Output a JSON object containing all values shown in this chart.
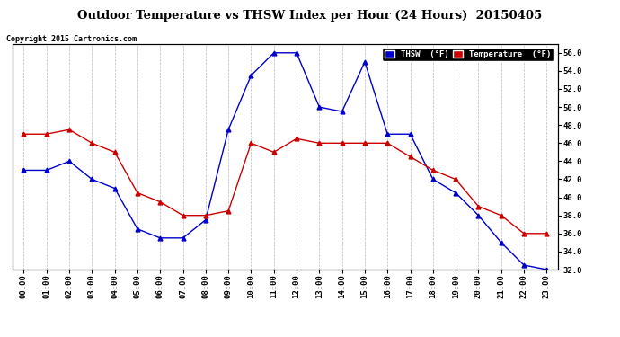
{
  "title": "Outdoor Temperature vs THSW Index per Hour (24 Hours)  20150405",
  "copyright": "Copyright 2015 Cartronics.com",
  "background_color": "#ffffff",
  "plot_background": "#ffffff",
  "grid_color": "#bbbbbb",
  "hours": [
    "00:00",
    "01:00",
    "02:00",
    "03:00",
    "04:00",
    "05:00",
    "06:00",
    "07:00",
    "08:00",
    "09:00",
    "10:00",
    "11:00",
    "12:00",
    "13:00",
    "14:00",
    "15:00",
    "16:00",
    "17:00",
    "18:00",
    "19:00",
    "20:00",
    "21:00",
    "22:00",
    "23:00"
  ],
  "thsw": [
    43.0,
    43.0,
    44.0,
    42.0,
    41.0,
    36.5,
    35.5,
    35.5,
    37.5,
    47.5,
    53.5,
    56.0,
    56.0,
    50.0,
    49.5,
    55.0,
    47.0,
    47.0,
    42.0,
    40.5,
    38.0,
    35.0,
    32.5,
    32.0
  ],
  "temperature": [
    47.0,
    47.0,
    47.5,
    46.0,
    45.0,
    40.5,
    39.5,
    38.0,
    38.0,
    38.5,
    46.0,
    45.0,
    46.5,
    46.0,
    46.0,
    46.0,
    46.0,
    44.5,
    43.0,
    42.0,
    39.0,
    38.0,
    36.0,
    36.0
  ],
  "thsw_color": "#0000cc",
  "temp_color": "#cc0000",
  "ylim_min": 32.0,
  "ylim_max": 57.0,
  "ytick_min": 32.0,
  "ytick_max": 56.0,
  "ytick_step": 2.0,
  "legend_thsw_label": "THSW  (°F)",
  "legend_temp_label": "Temperature  (°F)"
}
